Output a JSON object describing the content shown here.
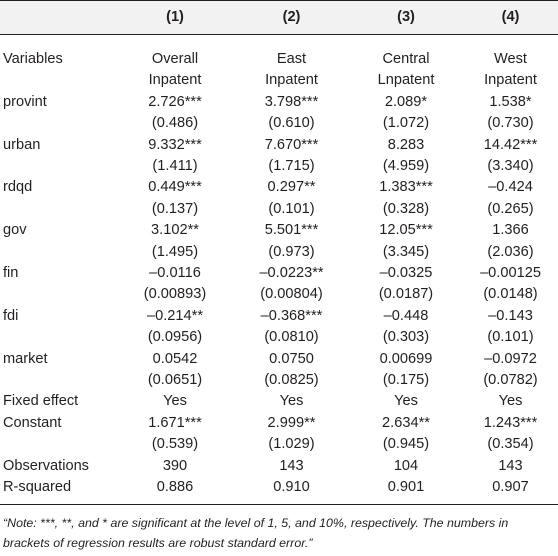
{
  "table": {
    "header": [
      "(1)",
      "(2)",
      "(3)",
      "(4)"
    ],
    "rows": [
      [
        "Variables",
        "Overall",
        "East",
        "Central",
        "West"
      ],
      [
        "",
        "Inpatent",
        "Inpatent",
        "Lnpatent",
        "Inpatent"
      ],
      [
        "provint",
        "2.726***",
        "3.798***",
        "2.089*",
        "1.538*"
      ],
      [
        "",
        "(0.486)",
        "(0.610)",
        "(1.072)",
        "(0.730)"
      ],
      [
        "urban",
        "9.332***",
        "7.670***",
        "8.283",
        "14.42***"
      ],
      [
        "",
        "(1.411)",
        "(1.715)",
        "(4.959)",
        "(3.340)"
      ],
      [
        "rdqd",
        "0.449***",
        "0.297**",
        "1.383***",
        "–0.424"
      ],
      [
        "",
        "(0.137)",
        "(0.101)",
        "(0.328)",
        "(0.265)"
      ],
      [
        "gov",
        "3.102**",
        "5.501***",
        "12.05***",
        "1.366"
      ],
      [
        "",
        "(1.495)",
        "(0.973)",
        "(3.345)",
        "(2.036)"
      ],
      [
        "fin",
        "–0.0116",
        "–0.0223**",
        "–0.0325",
        "–0.00125"
      ],
      [
        "",
        "(0.00893)",
        "(0.00804)",
        "(0.0187)",
        "(0.0148)"
      ],
      [
        "fdi",
        "–0.214**",
        "–0.368***",
        "–0.448",
        "–0.143"
      ],
      [
        "",
        "(0.0956)",
        "(0.0810)",
        "(0.303)",
        "(0.101)"
      ],
      [
        "market",
        "0.0542",
        "0.0750",
        "0.00699",
        "–0.0972"
      ],
      [
        "",
        "(0.0651)",
        "(0.0825)",
        "(0.175)",
        "(0.0782)"
      ],
      [
        "Fixed effect",
        "Yes",
        "Yes",
        "Yes",
        "Yes"
      ],
      [
        "Constant",
        "1.671***",
        "2.999**",
        "2.634**",
        "1.243***"
      ],
      [
        "",
        "(0.539)",
        "(1.029)",
        "(0.945)",
        "(0.354)"
      ],
      [
        "Observations",
        "390",
        "143",
        "104",
        "143"
      ],
      [
        "R-squared",
        "0.886",
        "0.910",
        "0.901",
        "0.907"
      ]
    ]
  },
  "note": "“Note: ***, **, and * are significant at the level of 1, 5, and 10%, respectively. The numbers in brackets of regression results are robust standard error.”"
}
